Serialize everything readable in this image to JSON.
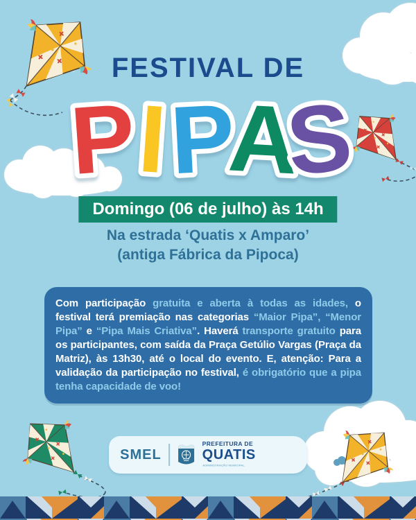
{
  "title": {
    "line1": "FESTIVAL DE",
    "word": "PIPAS",
    "letters": [
      {
        "char": "P",
        "color": "#e24140"
      },
      {
        "char": "I",
        "color": "#f9c623"
      },
      {
        "char": "P",
        "color": "#31a2de"
      },
      {
        "char": "A",
        "color": "#0e8a63"
      },
      {
        "char": "S",
        "color": "#6952a3"
      }
    ]
  },
  "event": {
    "datetime_banner": "Domingo (06 de julho) às 14h",
    "location_line1": "Na estrada ‘Quatis x Amparo’",
    "location_line2": "(antiga Fábrica da Pipoca)"
  },
  "info": {
    "segments": [
      {
        "text": "Com participação ",
        "emphasis": "white"
      },
      {
        "text": "gratuita e aberta à todas as idades,",
        "emphasis": "light"
      },
      {
        "text": " o festival terá premiação nas categorias ",
        "emphasis": "white"
      },
      {
        "text": "“Maior Pipa”, “Menor Pipa”",
        "emphasis": "light"
      },
      {
        "text": " e ",
        "emphasis": "white"
      },
      {
        "text": "“Pipa Mais Criativa”",
        "emphasis": "light"
      },
      {
        "text": ". Haverá ",
        "emphasis": "white"
      },
      {
        "text": "transporte gratuito",
        "emphasis": "light"
      },
      {
        "text": " para os participantes, com saída da Praça Getúlio Vargas (Praça da Matriz), às 13h30, até o local do evento. E, atenção: Para a validação da participação no festival, ",
        "emphasis": "white"
      },
      {
        "text": "é obrigatório que a pipa tenha capacidade de voo!",
        "emphasis": "light"
      }
    ]
  },
  "footer": {
    "smel_label": "SMEL",
    "prefeitura_top": "PREFEITURA DE",
    "prefeitura_name": "QUATIS",
    "prefeitura_tagline": "ADMINISTRAÇÃO MUNICIPAL"
  },
  "colors": {
    "sky": "#9ed3e6",
    "title_navy": "#1b4a8d",
    "banner_green": "#14886c",
    "location_text": "#2e7096",
    "info_box_blue": "#2e6da6",
    "info_text_light": "#8fcbe9",
    "kite_yellow": "#f2b32a",
    "kite_red": "#d6413c",
    "kite_green": "#1f8a66",
    "strip_navy": "#1e3a68",
    "strip_orange": "#e2923c",
    "strip_steel": "#4a7ca6",
    "strip_light": "#ccdce8"
  }
}
